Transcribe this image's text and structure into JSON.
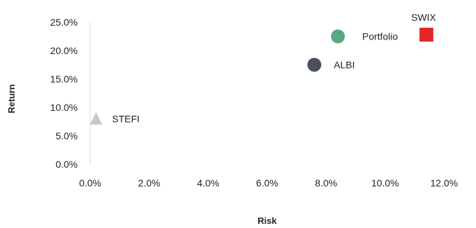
{
  "chart_data": {
    "type": "scatter",
    "title": "",
    "xlabel": "Risk",
    "ylabel": "Return",
    "xlim": [
      0,
      12
    ],
    "ylim": [
      0,
      25
    ],
    "x_ticks": [
      0,
      2,
      4,
      6,
      8,
      10,
      12
    ],
    "y_ticks": [
      0,
      5,
      10,
      15,
      20,
      25
    ],
    "x_tick_labels": [
      "0.0%",
      "2.0%",
      "4.0%",
      "6.0%",
      "8.0%",
      "10.0%",
      "12.0%"
    ],
    "y_tick_labels": [
      "0.0%",
      "5.0%",
      "10.0%",
      "15.0%",
      "20.0%",
      "25.0%"
    ],
    "grid": false,
    "legend": "none",
    "points": [
      {
        "label": "SWIX",
        "x": 11.4,
        "y": 22.8,
        "marker": "square",
        "color": "#e32526",
        "label_position": "above"
      },
      {
        "label": "Portfolio",
        "x": 8.4,
        "y": 22.5,
        "marker": "circle",
        "color": "#5aa883",
        "label_position": "right"
      },
      {
        "label": "ALBI",
        "x": 7.6,
        "y": 17.5,
        "marker": "circle",
        "color": "#4a4f5c",
        "label_position": "right"
      },
      {
        "label": "STEFI",
        "x": 0.2,
        "y": 8.0,
        "marker": "triangle",
        "color": "#c8c8c8",
        "label_position": "right"
      }
    ]
  }
}
